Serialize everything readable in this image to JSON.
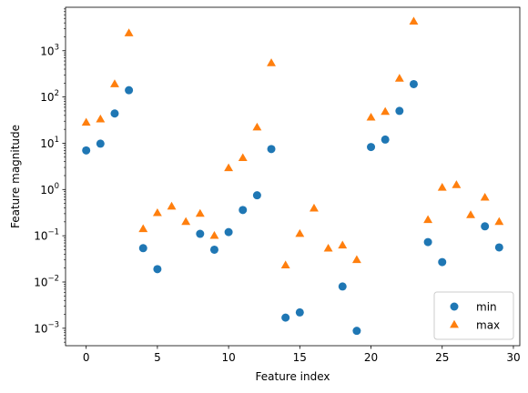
{
  "chart_data": {
    "type": "scatter",
    "xlabel": "Feature index",
    "ylabel": "Feature magnitude",
    "yscale": "log",
    "xlim": [
      -1.45,
      30.45
    ],
    "ylim": [
      0.00042,
      8700
    ],
    "x_ticks": [
      0,
      5,
      10,
      15,
      20,
      25,
      30
    ],
    "y_ticks": [
      {
        "value": 0.001,
        "base": "10",
        "exp": "−3"
      },
      {
        "value": 0.01,
        "base": "10",
        "exp": "−2"
      },
      {
        "value": 0.1,
        "base": "10",
        "exp": "−1"
      },
      {
        "value": 1,
        "base": "10",
        "exp": "0"
      },
      {
        "value": 10,
        "base": "10",
        "exp": "1"
      },
      {
        "value": 100,
        "base": "10",
        "exp": "2"
      },
      {
        "value": 1000,
        "base": "10",
        "exp": "3"
      }
    ],
    "grid": false,
    "legend_position": "bottom-right",
    "series": [
      {
        "name": "min",
        "marker": "circle",
        "color": "#1f77b4",
        "x": [
          0,
          1,
          2,
          3,
          4,
          5,
          6,
          7,
          8,
          9,
          10,
          11,
          12,
          13,
          14,
          15,
          16,
          17,
          18,
          19,
          20,
          21,
          22,
          23,
          24,
          25,
          26,
          27,
          28,
          29
        ],
        "y": [
          7.0,
          9.8,
          44,
          140,
          0.054,
          0.019,
          null,
          null,
          0.11,
          0.05,
          0.12,
          0.36,
          0.75,
          7.5,
          0.0017,
          0.0022,
          null,
          null,
          0.008,
          0.00088,
          8.3,
          12,
          50,
          190,
          0.073,
          0.027,
          null,
          null,
          0.16,
          0.056
        ]
      },
      {
        "name": "max",
        "marker": "triangle",
        "color": "#ff7f0e",
        "x": [
          0,
          1,
          2,
          3,
          4,
          5,
          6,
          7,
          8,
          9,
          10,
          11,
          12,
          13,
          14,
          15,
          16,
          17,
          18,
          19,
          20,
          21,
          22,
          23,
          24,
          25,
          26,
          27,
          28,
          29
        ],
        "y": [
          28,
          33,
          190,
          2400,
          0.14,
          0.31,
          0.43,
          0.2,
          0.3,
          0.1,
          2.9,
          4.8,
          22,
          540,
          0.023,
          0.11,
          0.39,
          0.053,
          0.062,
          0.03,
          36,
          48,
          250,
          4300,
          0.22,
          1.1,
          1.25,
          0.28,
          0.67,
          0.2
        ]
      }
    ]
  }
}
